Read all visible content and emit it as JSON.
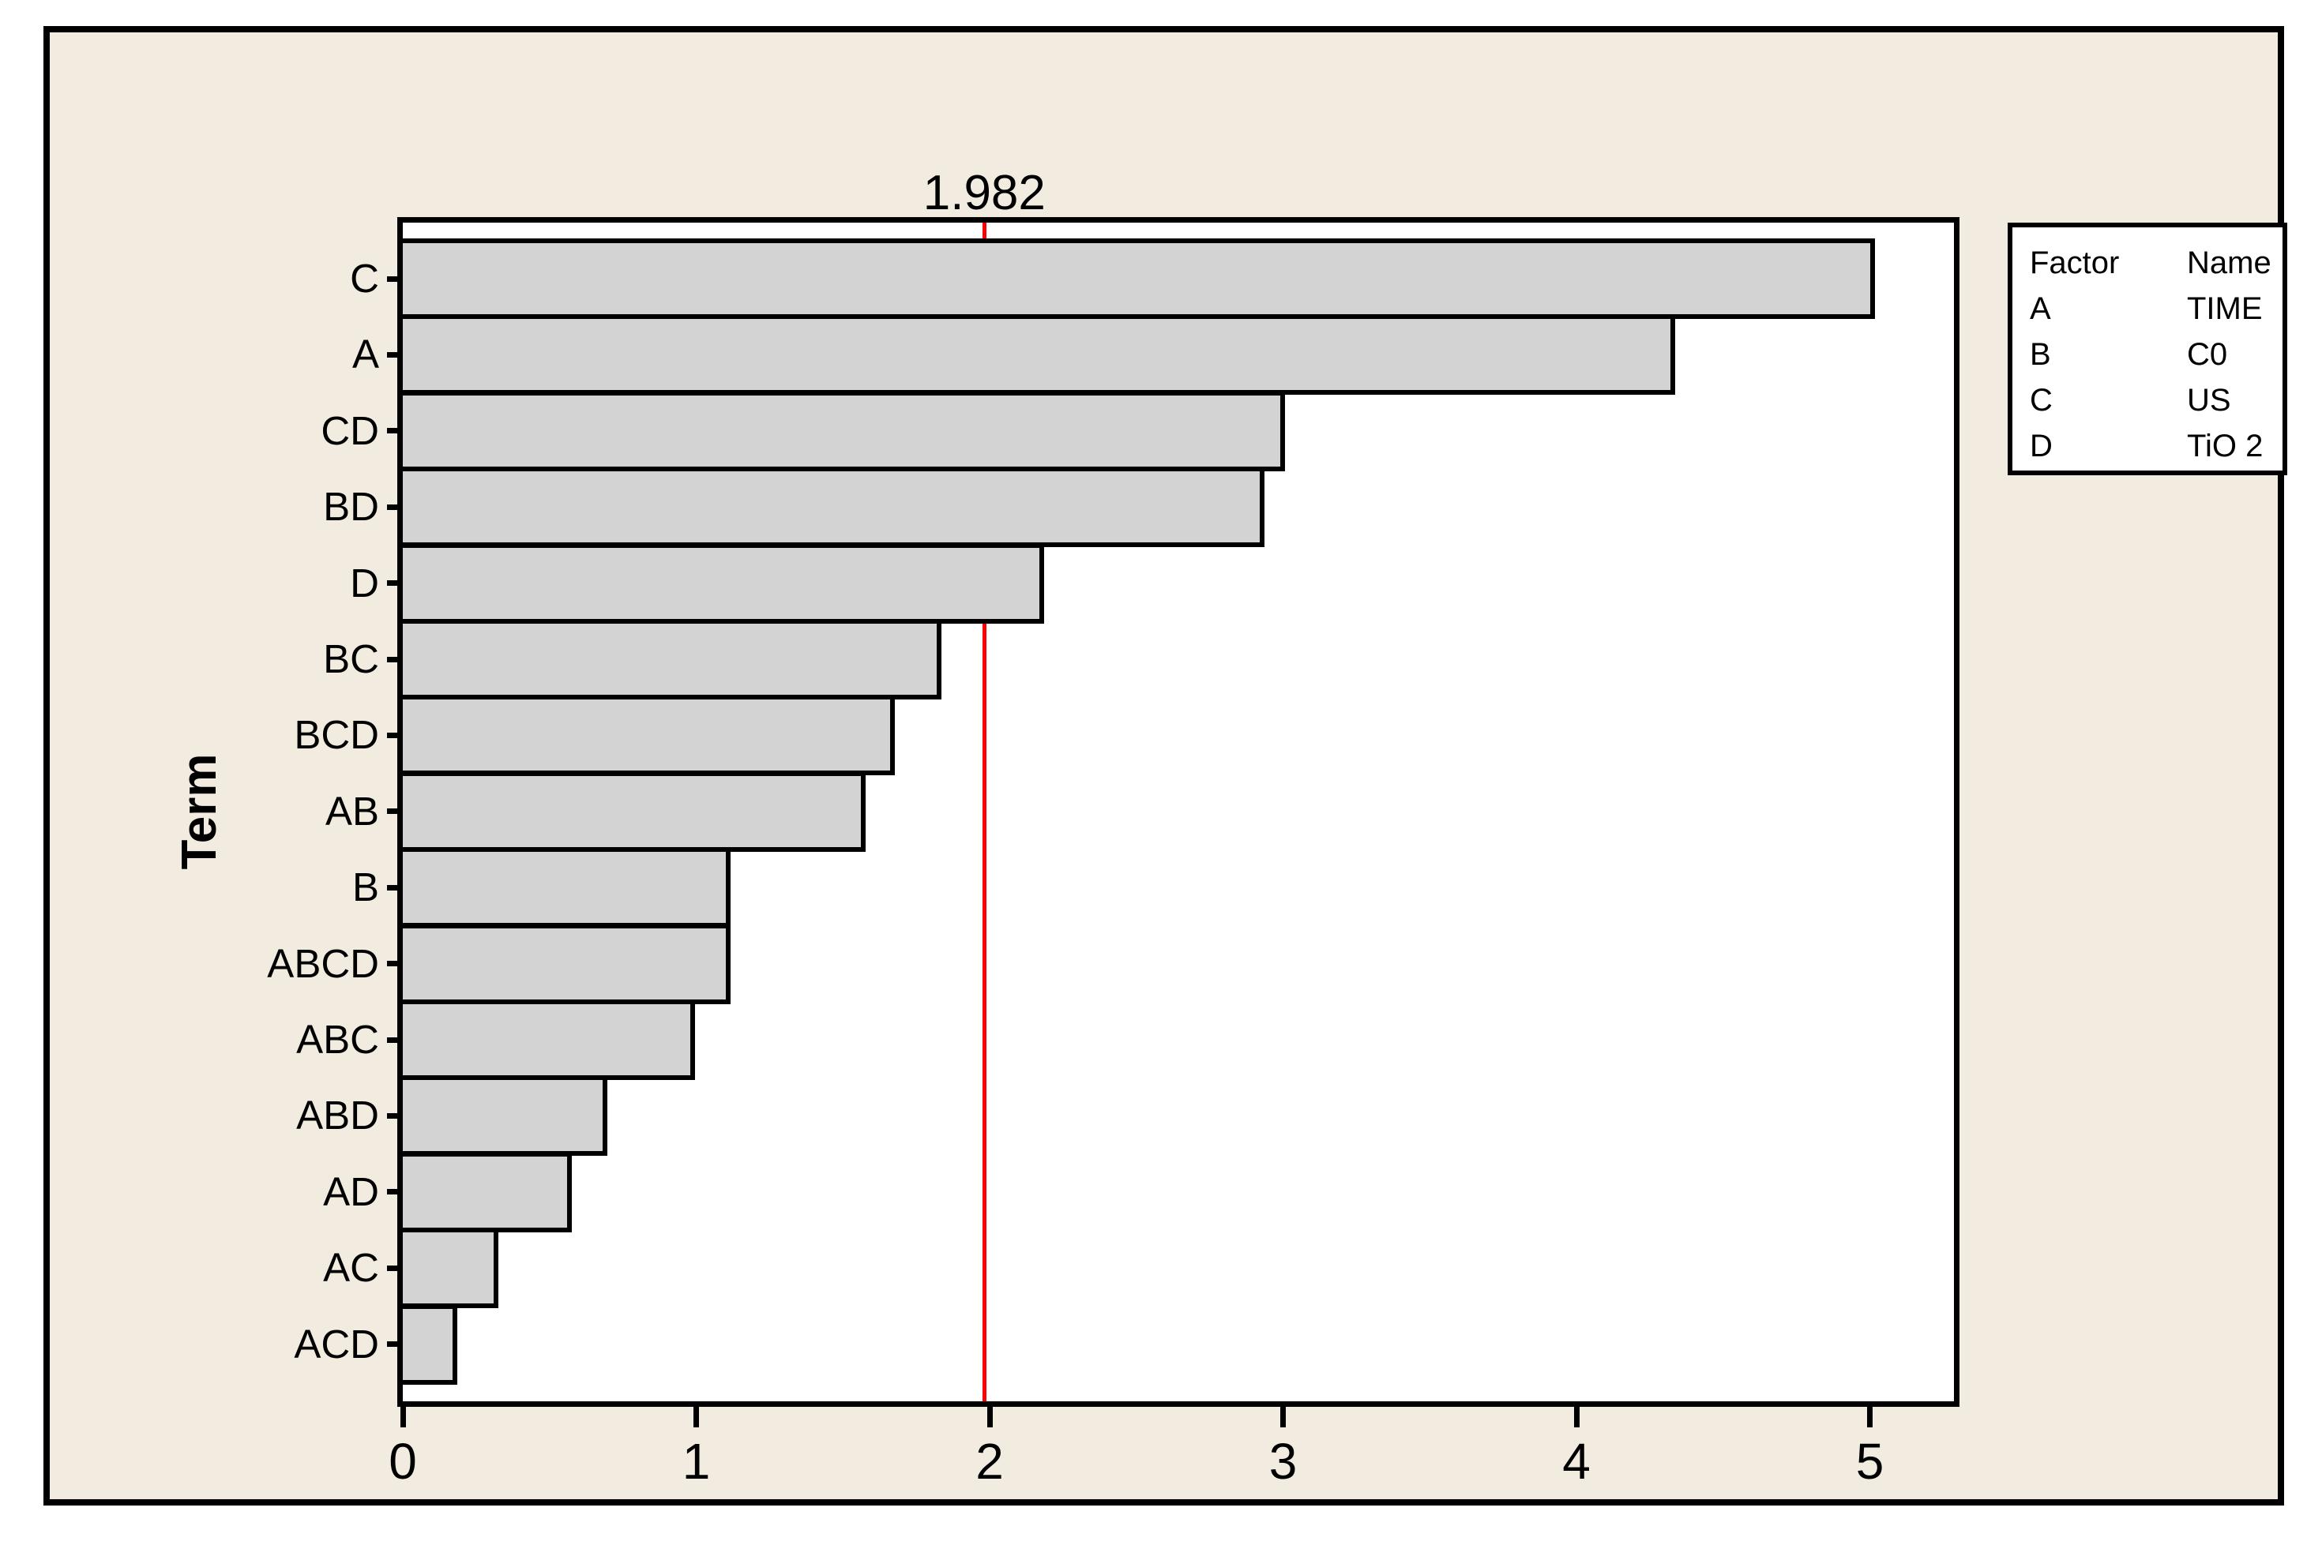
{
  "colors": {
    "panel_background": "#F2ECE0",
    "plot_background": "#FFFFFF",
    "bar_fill": "#D3D3D3",
    "bar_border": "#000000",
    "reference_line_color": "#FF0000",
    "frame_color": "#000000"
  },
  "chart_data": {
    "type": "bar",
    "orientation": "horizontal",
    "title": "",
    "ylabel": "Term",
    "xlabel": "",
    "categories": [
      "C",
      "A",
      "CD",
      "BD",
      "D",
      "BC",
      "BCD",
      "AB",
      "B",
      "ABCD",
      "ABC",
      "ABD",
      "AD",
      "AC",
      "ACD"
    ],
    "values": [
      5.0,
      4.32,
      2.99,
      2.92,
      2.17,
      1.82,
      1.66,
      1.56,
      1.1,
      1.1,
      0.98,
      0.68,
      0.56,
      0.31,
      0.17
    ],
    "x_ticks": [
      "0",
      "1",
      "2",
      "3",
      "4",
      "5"
    ],
    "xlim": [
      0,
      5.29
    ],
    "grid": false,
    "reference_line": {
      "value": 1.982,
      "label": "1.982"
    },
    "legend": {
      "position": "top-right",
      "headers": [
        "Factor",
        "Name"
      ],
      "rows": [
        {
          "factor": "A",
          "name": "TIME"
        },
        {
          "factor": "B",
          "name": "C0"
        },
        {
          "factor": "C",
          "name": "US"
        },
        {
          "factor": "D",
          "name": "TiO 2"
        }
      ]
    }
  }
}
